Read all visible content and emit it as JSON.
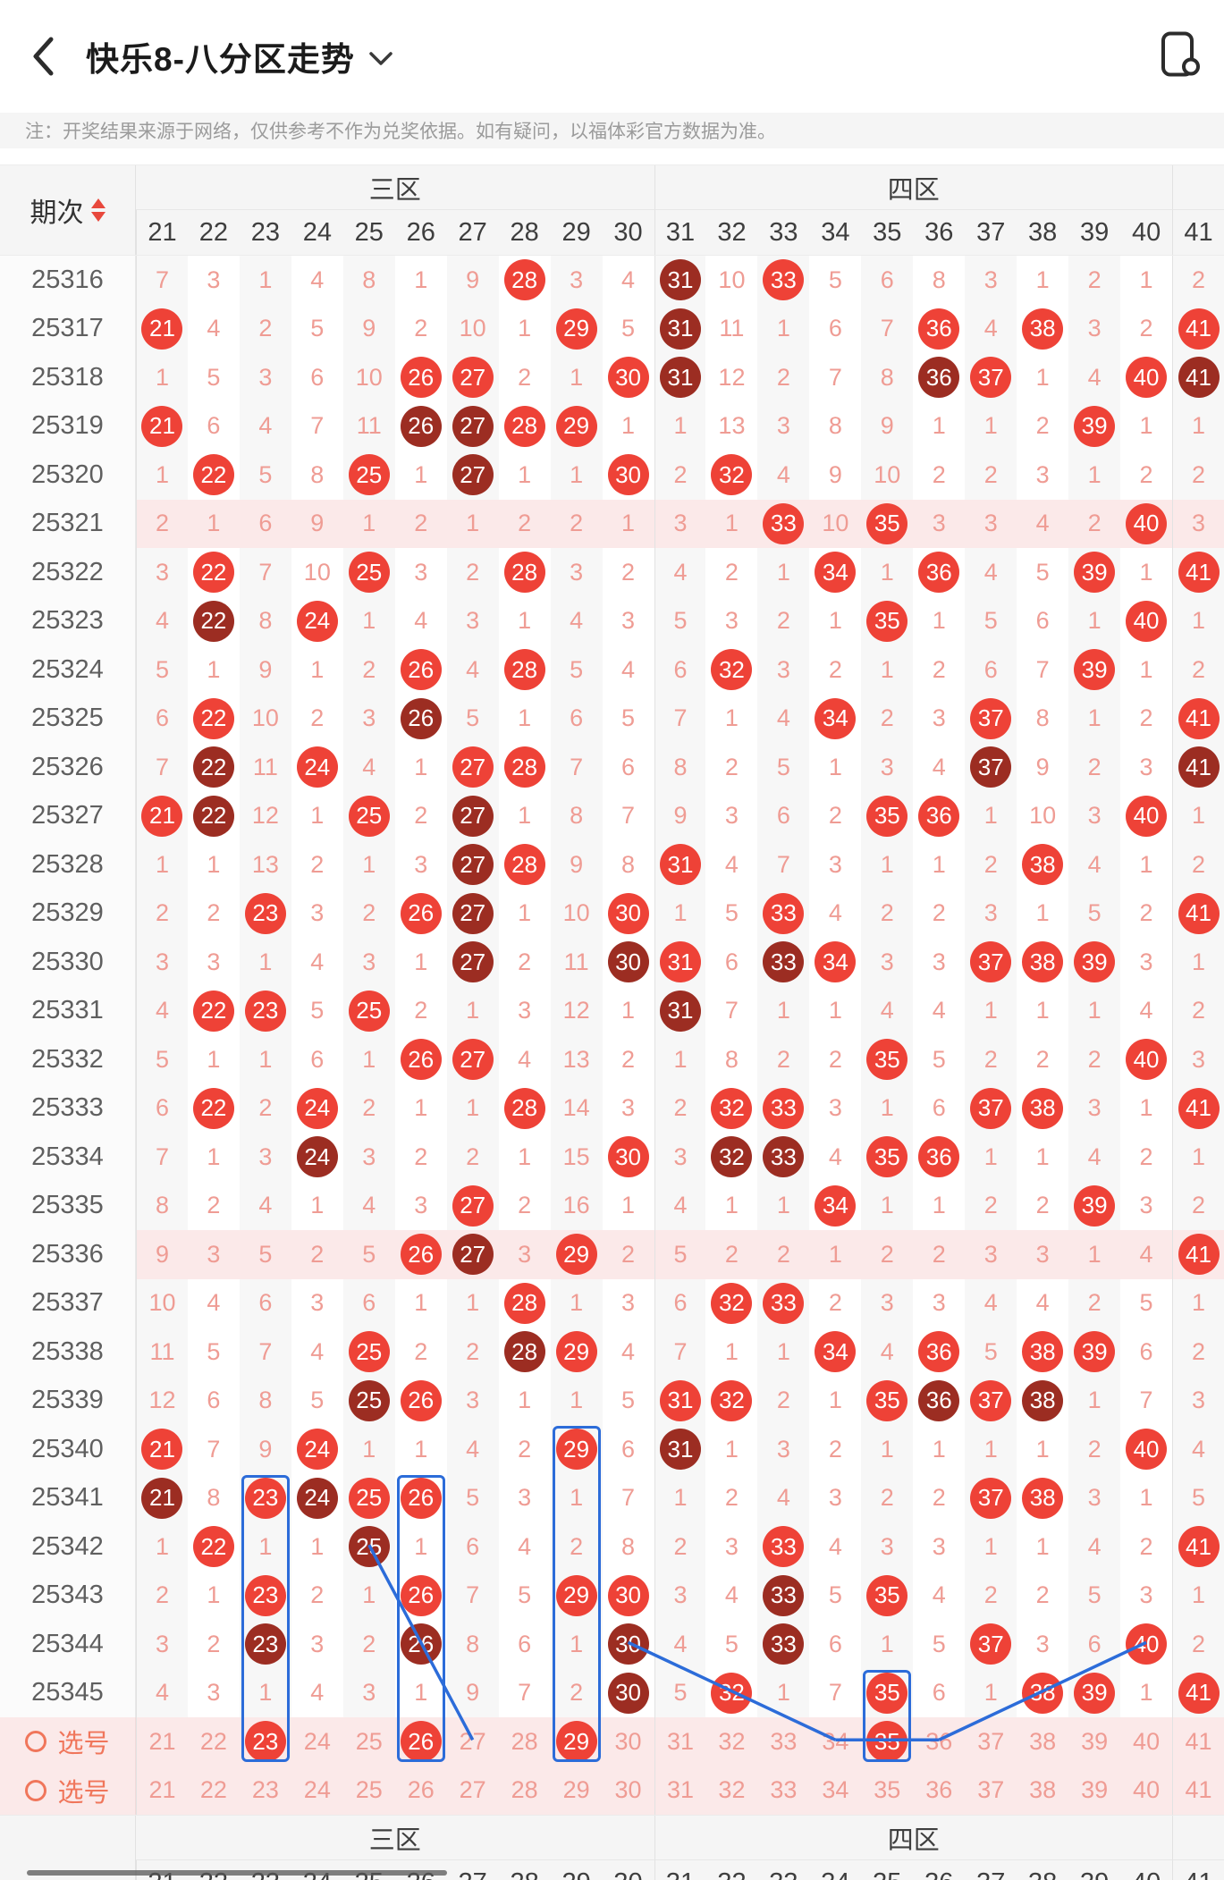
{
  "colors": {
    "drawn": "#ee4237",
    "repeat_drawn": "#9c2d22",
    "miss_text": "#ef9c94",
    "selection_blue": "#2c6cd9",
    "row_highlight": "#fbe9e9"
  },
  "header": {
    "title": "快乐8-八分区走势"
  },
  "notice": "注：开奖结果来源于网络，仅供参考不作为兑奖依据。如有疑问，以福体彩官方数据为准。",
  "table": {
    "period_header": "期次",
    "zones": [
      {
        "label": "三区",
        "span": 10
      },
      {
        "label": "四区",
        "span": 10
      },
      {
        "label": "",
        "span": 1
      }
    ],
    "columns": [
      "21",
      "22",
      "23",
      "24",
      "25",
      "26",
      "27",
      "28",
      "29",
      "30",
      "31",
      "32",
      "33",
      "34",
      "35",
      "36",
      "37",
      "38",
      "39",
      "40",
      "41"
    ],
    "rows": [
      {
        "period": "25316",
        "tint": false,
        "cells": [
          "7",
          "3",
          "1",
          "4",
          "8",
          "1",
          "9",
          "o28",
          "3",
          "4",
          "d31",
          "10",
          "o33",
          "5",
          "6",
          "8",
          "3",
          "1",
          "2",
          "1",
          "2"
        ]
      },
      {
        "period": "25317",
        "tint": false,
        "cells": [
          "o21",
          "4",
          "2",
          "5",
          "9",
          "2",
          "10",
          "1",
          "o29",
          "5",
          "d31",
          "11",
          "1",
          "6",
          "7",
          "o36",
          "4",
          "o38",
          "3",
          "2",
          "o41"
        ]
      },
      {
        "period": "25318",
        "tint": false,
        "cells": [
          "1",
          "5",
          "3",
          "6",
          "10",
          "o26",
          "o27",
          "2",
          "1",
          "o30",
          "d31",
          "12",
          "2",
          "7",
          "8",
          "d36",
          "o37",
          "1",
          "4",
          "o40",
          "d41"
        ]
      },
      {
        "period": "25319",
        "tint": false,
        "cells": [
          "o21",
          "6",
          "4",
          "7",
          "11",
          "d26",
          "d27",
          "o28",
          "o29",
          "1",
          "1",
          "13",
          "3",
          "8",
          "9",
          "1",
          "1",
          "2",
          "o39",
          "1",
          "1"
        ]
      },
      {
        "period": "25320",
        "tint": false,
        "cells": [
          "1",
          "o22",
          "5",
          "8",
          "o25",
          "1",
          "d27",
          "1",
          "1",
          "o30",
          "2",
          "o32",
          "4",
          "9",
          "10",
          "2",
          "2",
          "3",
          "1",
          "2",
          "2"
        ]
      },
      {
        "period": "25321",
        "tint": true,
        "cells": [
          "2",
          "1",
          "6",
          "9",
          "1",
          "2",
          "1",
          "2",
          "2",
          "1",
          "3",
          "1",
          "o33",
          "10",
          "o35",
          "3",
          "3",
          "4",
          "2",
          "o40",
          "3"
        ]
      },
      {
        "period": "25322",
        "tint": false,
        "cells": [
          "3",
          "o22",
          "7",
          "10",
          "o25",
          "3",
          "2",
          "o28",
          "3",
          "2",
          "4",
          "2",
          "1",
          "o34",
          "1",
          "o36",
          "4",
          "5",
          "o39",
          "1",
          "o41"
        ]
      },
      {
        "period": "25323",
        "tint": false,
        "cells": [
          "4",
          "d22",
          "8",
          "o24",
          "1",
          "4",
          "3",
          "1",
          "4",
          "3",
          "5",
          "3",
          "2",
          "1",
          "o35",
          "1",
          "5",
          "6",
          "1",
          "o40",
          "1"
        ]
      },
      {
        "period": "25324",
        "tint": false,
        "cells": [
          "5",
          "1",
          "9",
          "1",
          "2",
          "o26",
          "4",
          "o28",
          "5",
          "4",
          "6",
          "o32",
          "3",
          "2",
          "1",
          "2",
          "6",
          "7",
          "o39",
          "1",
          "2"
        ]
      },
      {
        "period": "25325",
        "tint": false,
        "cells": [
          "6",
          "o22",
          "10",
          "2",
          "3",
          "d26",
          "5",
          "1",
          "6",
          "5",
          "7",
          "1",
          "4",
          "o34",
          "2",
          "3",
          "o37",
          "8",
          "1",
          "2",
          "o41"
        ]
      },
      {
        "period": "25326",
        "tint": false,
        "cells": [
          "7",
          "d22",
          "11",
          "o24",
          "4",
          "1",
          "o27",
          "o28",
          "7",
          "6",
          "8",
          "2",
          "5",
          "1",
          "3",
          "4",
          "d37",
          "9",
          "2",
          "3",
          "d41"
        ]
      },
      {
        "period": "25327",
        "tint": false,
        "cells": [
          "o21",
          "d22",
          "12",
          "1",
          "o25",
          "2",
          "d27",
          "1",
          "8",
          "7",
          "9",
          "3",
          "6",
          "2",
          "o35",
          "o36",
          "1",
          "10",
          "3",
          "o40",
          "1"
        ]
      },
      {
        "period": "25328",
        "tint": false,
        "cells": [
          "1",
          "1",
          "13",
          "2",
          "1",
          "3",
          "d27",
          "o28",
          "9",
          "8",
          "o31",
          "4",
          "7",
          "3",
          "1",
          "1",
          "2",
          "o38",
          "4",
          "1",
          "2"
        ]
      },
      {
        "period": "25329",
        "tint": false,
        "cells": [
          "2",
          "2",
          "o23",
          "3",
          "2",
          "o26",
          "d27",
          "1",
          "10",
          "o30",
          "1",
          "5",
          "o33",
          "4",
          "2",
          "2",
          "3",
          "1",
          "5",
          "2",
          "o41"
        ]
      },
      {
        "period": "25330",
        "tint": false,
        "cells": [
          "3",
          "3",
          "1",
          "4",
          "3",
          "1",
          "d27",
          "2",
          "11",
          "d30",
          "o31",
          "6",
          "d33",
          "o34",
          "3",
          "3",
          "o37",
          "o38",
          "o39",
          "3",
          "1"
        ]
      },
      {
        "period": "25331",
        "tint": false,
        "cells": [
          "4",
          "o22",
          "o23",
          "5",
          "o25",
          "2",
          "1",
          "3",
          "12",
          "1",
          "d31",
          "7",
          "1",
          "1",
          "4",
          "4",
          "1",
          "1",
          "1",
          "4",
          "2"
        ]
      },
      {
        "period": "25332",
        "tint": false,
        "cells": [
          "5",
          "1",
          "1",
          "6",
          "1",
          "o26",
          "o27",
          "4",
          "13",
          "2",
          "1",
          "8",
          "2",
          "2",
          "o35",
          "5",
          "2",
          "2",
          "2",
          "o40",
          "3"
        ]
      },
      {
        "period": "25333",
        "tint": false,
        "cells": [
          "6",
          "o22",
          "2",
          "o24",
          "2",
          "1",
          "1",
          "o28",
          "14",
          "3",
          "2",
          "o32",
          "o33",
          "3",
          "1",
          "6",
          "o37",
          "o38",
          "3",
          "1",
          "o41"
        ]
      },
      {
        "period": "25334",
        "tint": false,
        "cells": [
          "7",
          "1",
          "3",
          "d24",
          "3",
          "2",
          "2",
          "1",
          "15",
          "o30",
          "3",
          "d32",
          "d33",
          "4",
          "o35",
          "o36",
          "1",
          "1",
          "4",
          "2",
          "1"
        ]
      },
      {
        "period": "25335",
        "tint": false,
        "cells": [
          "8",
          "2",
          "4",
          "1",
          "4",
          "3",
          "o27",
          "2",
          "16",
          "1",
          "4",
          "1",
          "1",
          "o34",
          "1",
          "1",
          "2",
          "2",
          "o39",
          "3",
          "2"
        ]
      },
      {
        "period": "25336",
        "tint": true,
        "cells": [
          "9",
          "3",
          "5",
          "2",
          "5",
          "o26",
          "d27",
          "3",
          "o29",
          "2",
          "5",
          "2",
          "2",
          "1",
          "2",
          "2",
          "3",
          "3",
          "1",
          "4",
          "o41"
        ]
      },
      {
        "period": "25337",
        "tint": false,
        "cells": [
          "10",
          "4",
          "6",
          "3",
          "6",
          "1",
          "1",
          "o28",
          "1",
          "3",
          "6",
          "o32",
          "o33",
          "2",
          "3",
          "3",
          "4",
          "4",
          "2",
          "5",
          "1"
        ]
      },
      {
        "period": "25338",
        "tint": false,
        "cells": [
          "11",
          "5",
          "7",
          "4",
          "o25",
          "2",
          "2",
          "d28",
          "o29",
          "4",
          "7",
          "1",
          "1",
          "o34",
          "4",
          "o36",
          "5",
          "o38",
          "o39",
          "6",
          "2"
        ]
      },
      {
        "period": "25339",
        "tint": false,
        "cells": [
          "12",
          "6",
          "8",
          "5",
          "d25",
          "o26",
          "3",
          "1",
          "1",
          "5",
          "o31",
          "o32",
          "2",
          "1",
          "o35",
          "d36",
          "o37",
          "d38",
          "1",
          "7",
          "3"
        ]
      },
      {
        "period": "25340",
        "tint": false,
        "cells": [
          "o21",
          "7",
          "9",
          "o24",
          "1",
          "1",
          "4",
          "2",
          "o29",
          "6",
          "d31",
          "1",
          "3",
          "2",
          "1",
          "1",
          "1",
          "1",
          "2",
          "o40",
          "4"
        ]
      },
      {
        "period": "25341",
        "tint": false,
        "cells": [
          "d21",
          "8",
          "o23",
          "d24",
          "o25",
          "o26",
          "5",
          "3",
          "1",
          "7",
          "1",
          "2",
          "4",
          "3",
          "2",
          "2",
          "o37",
          "o38",
          "3",
          "1",
          "5"
        ]
      },
      {
        "period": "25342",
        "tint": false,
        "cells": [
          "1",
          "o22",
          "1",
          "1",
          "d25",
          "1",
          "6",
          "4",
          "2",
          "8",
          "2",
          "3",
          "o33",
          "4",
          "3",
          "3",
          "1",
          "1",
          "4",
          "2",
          "o41"
        ]
      },
      {
        "period": "25343",
        "tint": false,
        "cells": [
          "2",
          "1",
          "o23",
          "2",
          "1",
          "o26",
          "7",
          "5",
          "o29",
          "o30",
          "3",
          "4",
          "d33",
          "5",
          "o35",
          "4",
          "2",
          "2",
          "5",
          "3",
          "1"
        ]
      },
      {
        "period": "25344",
        "tint": false,
        "cells": [
          "3",
          "2",
          "d23",
          "3",
          "2",
          "d26",
          "8",
          "6",
          "1",
          "d30",
          "4",
          "5",
          "d33",
          "6",
          "1",
          "5",
          "o37",
          "3",
          "6",
          "o40",
          "2"
        ]
      },
      {
        "period": "25345",
        "tint": false,
        "cells": [
          "4",
          "3",
          "1",
          "4",
          "3",
          "1",
          "9",
          "7",
          "2",
          "d30",
          "5",
          "o32",
          "1",
          "7",
          "o35",
          "6",
          "1",
          "o38",
          "o39",
          "1",
          "o41"
        ]
      }
    ],
    "pick_rows": [
      {
        "label": "选号",
        "cells": [
          "21",
          "22",
          "o23",
          "24",
          "25",
          "o26",
          "27",
          "28",
          "o29",
          "30",
          "31",
          "32",
          "33",
          "34",
          "o35",
          "36",
          "37",
          "38",
          "39",
          "40",
          "41"
        ]
      },
      {
        "label": "选号",
        "cells": [
          "21",
          "22",
          "23",
          "24",
          "25",
          "26",
          "27",
          "28",
          "29",
          "30",
          "31",
          "32",
          "33",
          "34",
          "35",
          "36",
          "37",
          "38",
          "39",
          "40",
          "41"
        ]
      }
    ],
    "selection_boxes": [
      {
        "col": "23",
        "from": "25341"
      },
      {
        "col": "26",
        "from": "25341"
      },
      {
        "col": "29",
        "from": "25340"
      },
      {
        "col": "35",
        "from": "25345"
      }
    ],
    "trend_lines": [
      {
        "from": [
          "25",
          "25342"
        ],
        "to": [
          "27",
          "pick1"
        ]
      },
      {
        "from": [
          "30",
          "25344"
        ],
        "to": [
          "34",
          "pick1"
        ]
      },
      {
        "from": [
          "34",
          "pick1"
        ],
        "to": [
          "36",
          "pick1"
        ]
      },
      {
        "from": [
          "36",
          "pick1"
        ],
        "to": [
          "40",
          "25344"
        ]
      }
    ]
  }
}
